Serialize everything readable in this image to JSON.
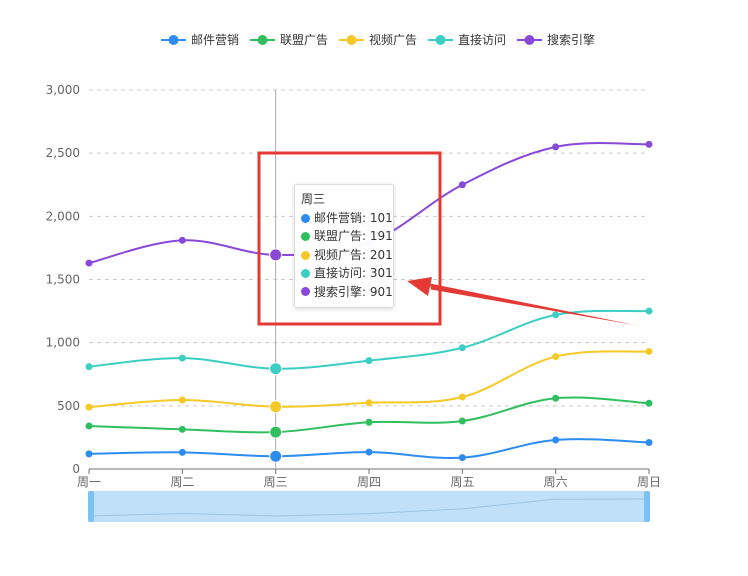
{
  "chart_data": {
    "type": "line",
    "smooth": true,
    "categories": [
      "周一",
      "周二",
      "周三",
      "周四",
      "周五",
      "周六",
      "周日"
    ],
    "series": [
      {
        "name": "邮件营销",
        "color": "#2d8cf0",
        "values": [
          120,
          132,
          101,
          134,
          90,
          230,
          210
        ]
      },
      {
        "name": "联盟广告",
        "color": "#2fbf5e",
        "values": [
          340,
          314,
          292,
          370,
          380,
          560,
          520
        ]
      },
      {
        "name": "视频广告",
        "color": "#f5c926",
        "values": [
          490,
          546,
          493,
          524,
          570,
          890,
          930
        ]
      },
      {
        "name": "直接访问",
        "color": "#3acfc2",
        "values": [
          810,
          878,
          794,
          858,
          960,
          1220,
          1250
        ]
      },
      {
        "name": "搜索引擎",
        "color": "#8a48d8",
        "values": [
          1630,
          1810,
          1695,
          1790,
          2250,
          2550,
          2570
        ]
      }
    ],
    "yaxis": {
      "min": 0,
      "max": 3000,
      "ticks": [
        0,
        500,
        1000,
        1500,
        2000,
        2500,
        3000
      ],
      "tick_labels": [
        "0",
        "500",
        "1,000",
        "1,500",
        "2,000",
        "2,500",
        "3,000"
      ]
    },
    "grid": true,
    "legend": "top-center",
    "highlighted_category": "周三",
    "tooltip": {
      "title": "周三",
      "rows": [
        {
          "label": "邮件营销: 101",
          "color": "#2d8cf0"
        },
        {
          "label": "联盟广告: 191",
          "color": "#2fbf5e"
        },
        {
          "label": "视频广告: 201",
          "color": "#f5c926"
        },
        {
          "label": "直接访问: 301",
          "color": "#3acfc2"
        },
        {
          "label": "搜索引擎: 901",
          "color": "#8a48d8"
        }
      ]
    },
    "data_zoom": {
      "position": "bottom",
      "range_percent": [
        0,
        100
      ]
    },
    "annotation": {
      "type": "red-box-with-arrow",
      "color": "#e53935"
    }
  }
}
